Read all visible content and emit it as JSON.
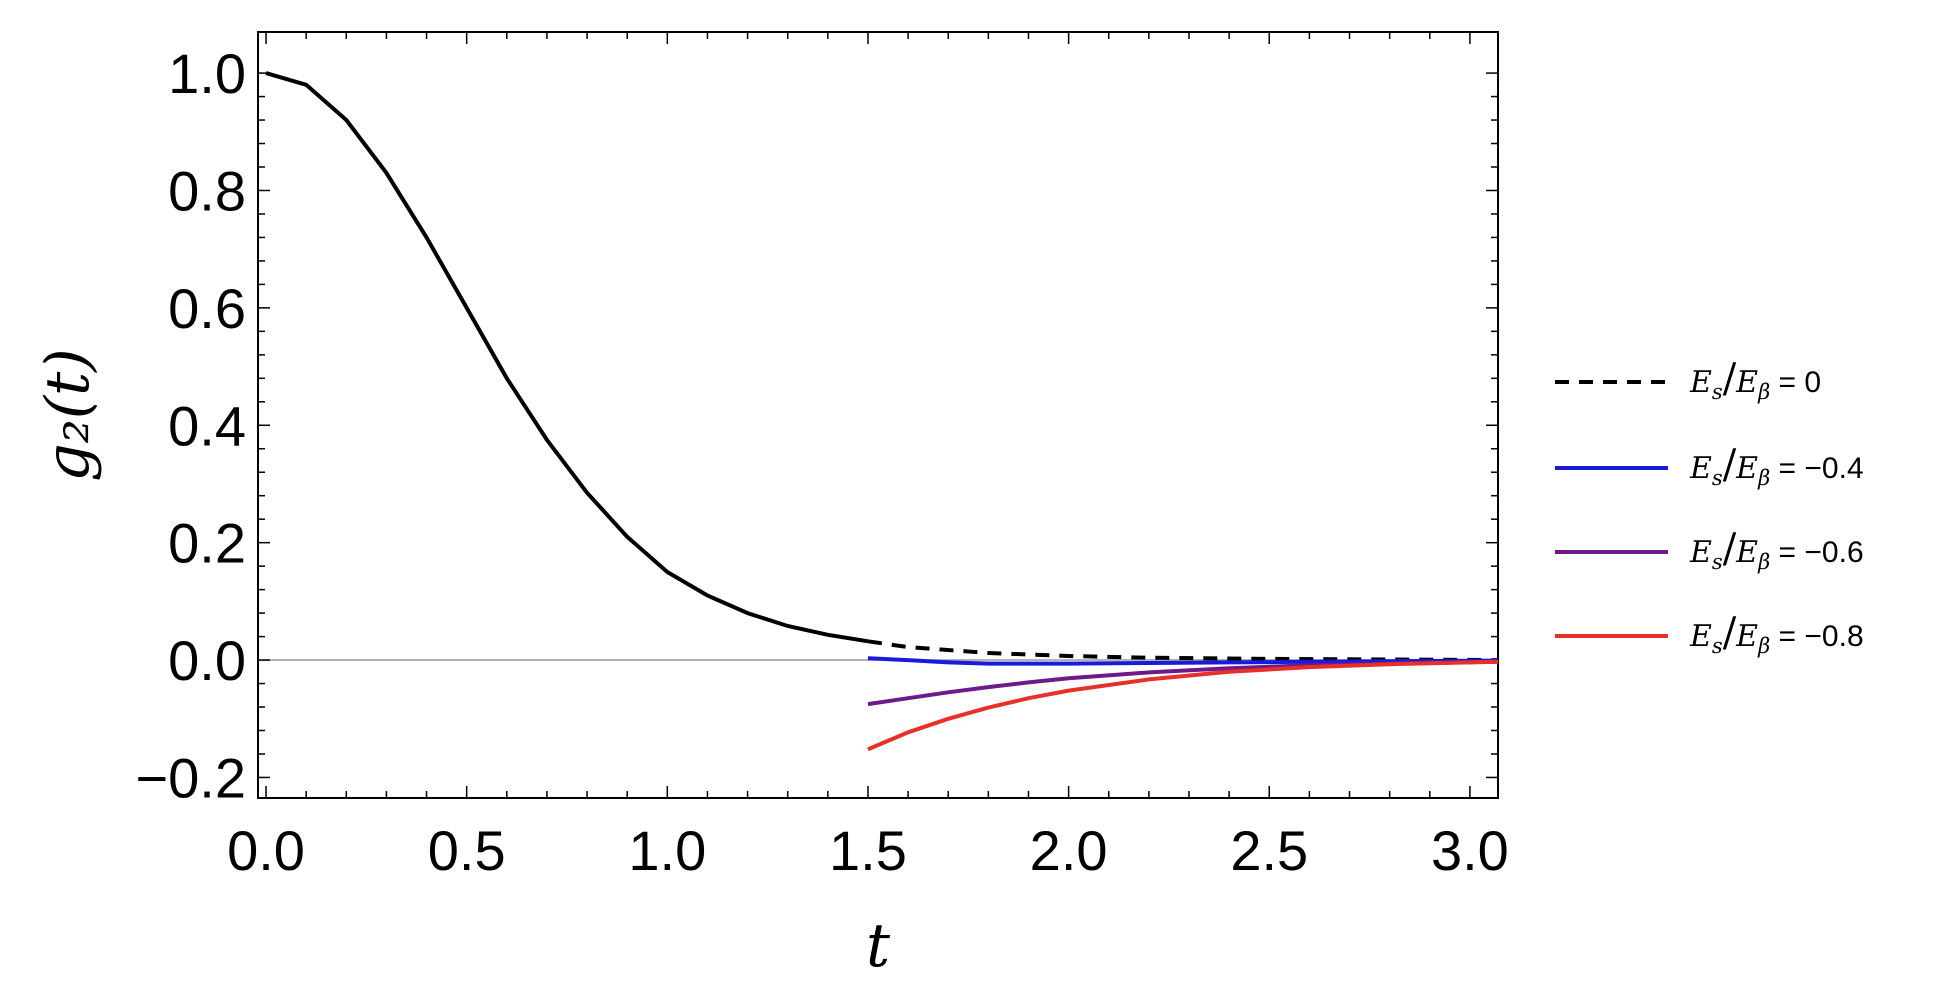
{
  "chart_data": {
    "type": "line",
    "xlabel": "t",
    "ylabel": "g₂(t)",
    "xlim": [
      -0.02,
      3.07
    ],
    "ylim": [
      -0.235,
      1.07
    ],
    "x_ticks": [
      "0.0",
      "0.5",
      "1.0",
      "1.5",
      "2.0",
      "2.5",
      "3.0"
    ],
    "y_ticks": [
      "1.0",
      "0.8",
      "0.6",
      "0.4",
      "0.2",
      "0.0",
      "−0.2"
    ],
    "grid": false,
    "legend_position": "right",
    "series": [
      {
        "name": "E_s/E_β = 0",
        "legend_label": "= 0",
        "color": "#000000",
        "style": "solid-then-dashed",
        "dash_from_x": 1.5,
        "x": [
          0.0,
          0.1,
          0.2,
          0.3,
          0.4,
          0.5,
          0.6,
          0.7,
          0.8,
          0.9,
          1.0,
          1.1,
          1.2,
          1.3,
          1.4,
          1.5,
          1.6,
          1.8,
          2.0,
          2.2,
          2.5,
          2.8,
          3.07
        ],
        "y": [
          1.0,
          0.98,
          0.92,
          0.83,
          0.72,
          0.6,
          0.48,
          0.375,
          0.285,
          0.21,
          0.15,
          0.11,
          0.08,
          0.058,
          0.043,
          0.032,
          0.022,
          0.012,
          0.007,
          0.004,
          0.002,
          0.001,
          0.0
        ]
      },
      {
        "name": "E_s/E_β = −0.4",
        "legend_label": "= −0.4",
        "color": "#1a1adb",
        "style": "solid",
        "x": [
          1.5,
          1.6,
          1.7,
          1.8,
          1.9,
          2.0,
          2.2,
          2.4,
          2.6,
          2.8,
          3.07
        ],
        "y": [
          0.003,
          0.0,
          -0.004,
          -0.006,
          -0.006,
          -0.006,
          -0.005,
          -0.004,
          -0.003,
          -0.002,
          -0.001
        ]
      },
      {
        "name": "E_s/E_β = −0.6",
        "legend_label": "= −0.6",
        "color": "#6e1a8a",
        "style": "solid",
        "x": [
          1.5,
          1.6,
          1.7,
          1.8,
          1.9,
          2.0,
          2.2,
          2.4,
          2.6,
          2.8,
          3.07
        ],
        "y": [
          -0.075,
          -0.065,
          -0.055,
          -0.046,
          -0.038,
          -0.031,
          -0.021,
          -0.014,
          -0.009,
          -0.006,
          -0.003
        ]
      },
      {
        "name": "E_s/E_β = −0.8",
        "legend_label": "= −0.8",
        "color": "#e8302a",
        "style": "solid",
        "x": [
          1.5,
          1.6,
          1.7,
          1.8,
          1.9,
          2.0,
          2.2,
          2.4,
          2.6,
          2.8,
          3.07
        ],
        "y": [
          -0.152,
          -0.123,
          -0.1,
          -0.081,
          -0.065,
          -0.052,
          -0.033,
          -0.02,
          -0.012,
          -0.007,
          -0.003
        ]
      }
    ]
  }
}
